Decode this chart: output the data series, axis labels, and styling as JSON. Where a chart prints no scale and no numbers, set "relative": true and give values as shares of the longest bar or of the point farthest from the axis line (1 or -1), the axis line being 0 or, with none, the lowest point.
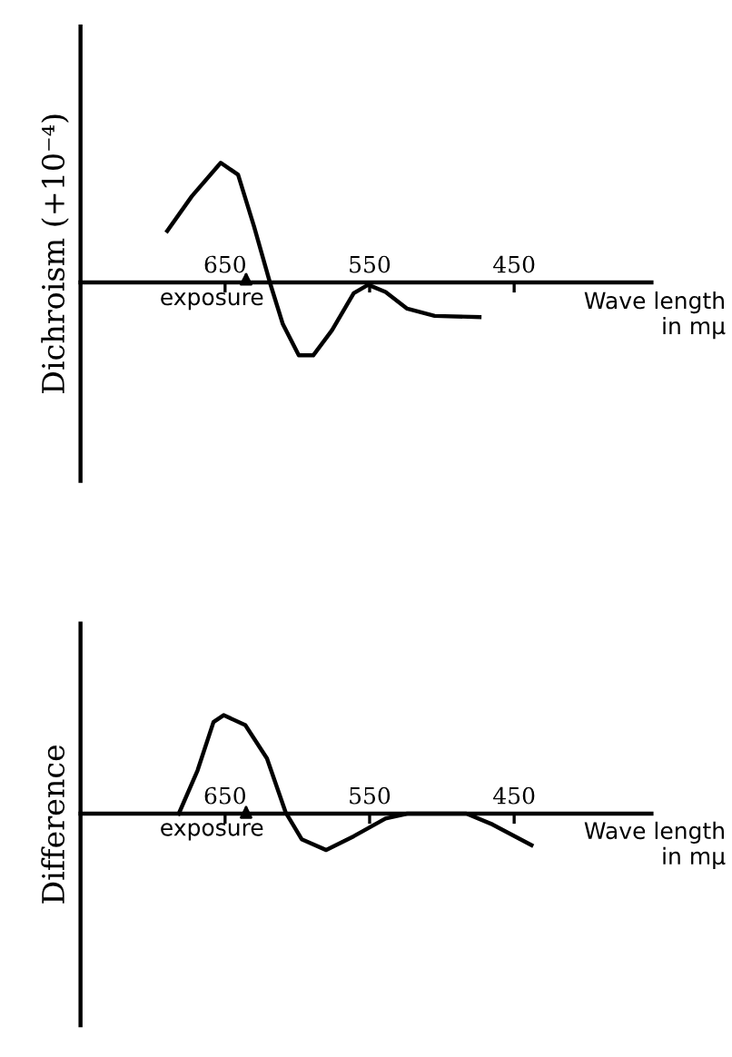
{
  "chart_data": [
    {
      "type": "line",
      "relative": true,
      "ylabel": "Dichroism (+10⁻⁴)",
      "xlabel": "Wave length\nin mμ",
      "xlim": [
        750,
        355
      ],
      "xticks": [
        650,
        550,
        450
      ],
      "grid": false,
      "line_style": "solid",
      "annotations": [
        "exposure"
      ],
      "series": [
        {
          "color": "#000000",
          "x": [
            690,
            673,
            653,
            641,
            630,
            619,
            610,
            599,
            589,
            576,
            561,
            551,
            539,
            524,
            505,
            474
          ],
          "values": [
            0.43,
            0.72,
            1.0,
            0.9,
            0.47,
            0,
            -0.35,
            -0.61,
            -0.61,
            -0.4,
            -0.09,
            -0.02,
            -0.08,
            -0.22,
            -0.28,
            -0.29
          ]
        }
      ]
    },
    {
      "type": "line",
      "relative": true,
      "ylabel": "Difference",
      "xlabel": "Wave length\nin mμ",
      "xlim": [
        750,
        355
      ],
      "xticks": [
        650,
        550,
        450
      ],
      "grid": false,
      "line_style": "solid",
      "annotations": [
        "exposure"
      ],
      "series": [
        {
          "color": "#000000",
          "x": [
            682,
            669,
            658,
            651,
            636,
            621,
            608,
            597,
            580,
            561,
            539,
            524,
            483,
            465,
            438
          ],
          "values": [
            0,
            0.44,
            0.93,
            1.0,
            0.9,
            0.56,
            0.01,
            -0.26,
            -0.37,
            -0.23,
            -0.05,
            0,
            0,
            -0.11,
            -0.32
          ]
        }
      ]
    }
  ]
}
